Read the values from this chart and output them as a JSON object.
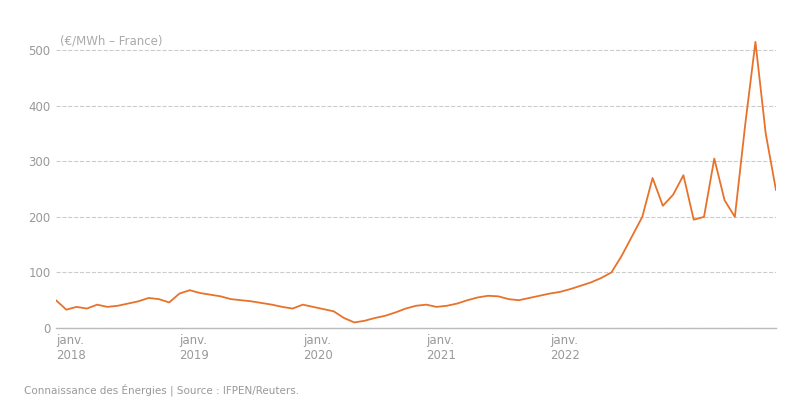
{
  "title_label": "(€/MWh – France)",
  "source_label": "Connaissance des Énergies | Source : IFPEN/Reuters.",
  "line_color": "#e8722a",
  "background_color": "#ffffff",
  "grid_color": "#cccccc",
  "ylim": [
    0,
    540
  ],
  "yticks": [
    0,
    100,
    200,
    300,
    400,
    500
  ],
  "values": [
    50,
    33,
    38,
    35,
    42,
    38,
    40,
    44,
    48,
    54,
    52,
    46,
    62,
    68,
    63,
    60,
    57,
    52,
    50,
    48,
    45,
    42,
    38,
    35,
    42,
    38,
    34,
    30,
    18,
    10,
    13,
    18,
    22,
    28,
    35,
    40,
    42,
    38,
    40,
    44,
    50,
    55,
    58,
    57,
    52,
    50,
    54,
    58,
    62,
    65,
    70,
    76,
    82,
    90,
    100,
    130,
    165,
    200,
    270,
    220,
    240,
    275,
    195,
    200,
    305,
    230,
    200,
    365,
    515,
    350,
    248
  ],
  "xtick_positions": [
    0,
    12,
    24,
    36,
    48
  ],
  "xtick_labels": [
    "janv.\n2018",
    "janv.\n2019",
    "janv.\n2020",
    "janv.\n2021",
    "janv.\n2022"
  ]
}
